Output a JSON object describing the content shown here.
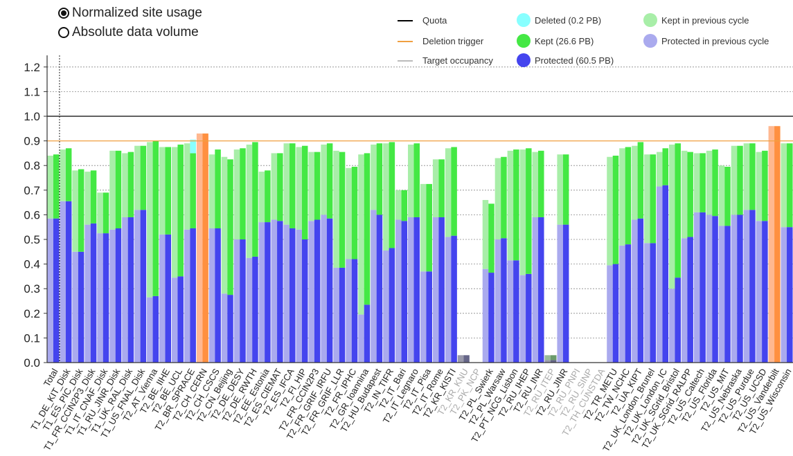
{
  "controls": {
    "options": [
      {
        "label": "Normalized site usage",
        "selected": true
      },
      {
        "label": "Absolute data volume",
        "selected": false
      }
    ]
  },
  "legend": {
    "lines": [
      {
        "label": "Quota",
        "color": "#000000"
      },
      {
        "label": "Deletion trigger",
        "color": "#f0a040"
      },
      {
        "label": "Target occupancy",
        "color": "#bbbbbb"
      }
    ],
    "swatches": [
      {
        "label": "Deleted (0.2 PB)",
        "color": "#88ffff"
      },
      {
        "label": "Kept (26.6 PB)",
        "color": "#44e844"
      },
      {
        "label": "Protected (60.5 PB)",
        "color": "#4444ee"
      },
      {
        "label": "Kept in previous cycle",
        "color": "#a8eea8"
      },
      {
        "label": "Protected in previous cycle",
        "color": "#aaaaee"
      }
    ]
  },
  "chart_data": {
    "type": "bar",
    "ylim": [
      0,
      1.25
    ],
    "yticks": [
      "0.0",
      "0.1",
      "0.2",
      "0.3",
      "0.4",
      "0.5",
      "0.6",
      "0.7",
      "0.8",
      "0.9",
      "1.0",
      "1.1",
      "1.2"
    ],
    "reference_lines": {
      "quota": 1.0,
      "deletion_trigger": 0.9
    },
    "colors": {
      "protected": "#4444ee",
      "kept": "#44e844",
      "deleted": "#88ffff",
      "protected_prev": "#aaaaee",
      "kept_prev": "#a8eea8",
      "over_trigger": "#ff9040",
      "over_trigger_prev": "#ffb890",
      "dim_cur": "#666688",
      "dim_prev": "#9999aa",
      "dim_kept": "#6a9a6a",
      "dim_kept_prev": "#99bb99"
    },
    "categories": [
      {
        "name": "Total",
        "prev": [
          0.585,
          0.84
        ],
        "cur": [
          0.585,
          0.845
        ]
      },
      {
        "name": "T1_DE_KIT_Disk",
        "prev": [
          0.655,
          0.865
        ],
        "cur": [
          0.655,
          0.87
        ]
      },
      {
        "name": "T1_ES_PIC_Disk",
        "prev": [
          0.45,
          0.78
        ],
        "cur": [
          0.45,
          0.785
        ]
      },
      {
        "name": "T1_FR_CCIN2P3_Disk",
        "prev": [
          0.56,
          0.775
        ],
        "cur": [
          0.565,
          0.78
        ]
      },
      {
        "name": "T1_IT_CNAF_Disk",
        "prev": [
          0.525,
          0.69
        ],
        "cur": [
          0.525,
          0.69
        ]
      },
      {
        "name": "T1_RU_JINR_Disk",
        "prev": [
          0.54,
          0.86
        ],
        "cur": [
          0.545,
          0.86
        ]
      },
      {
        "name": "T1_UK_RAL_Disk",
        "prev": [
          0.59,
          0.85
        ],
        "cur": [
          0.59,
          0.855
        ]
      },
      {
        "name": "T1_US_FNAL_Disk",
        "prev": [
          0.62,
          0.88
        ],
        "cur": [
          0.62,
          0.88
        ]
      },
      {
        "name": "T2_AT_Vienna",
        "prev": [
          0.265,
          0.895
        ],
        "cur": [
          0.27,
          0.9
        ]
      },
      {
        "name": "T2_BE_IIHE",
        "prev": [
          0.52,
          0.875
        ],
        "cur": [
          0.52,
          0.875
        ]
      },
      {
        "name": "T2_BE_UCL",
        "prev": [
          0.345,
          0.875
        ],
        "cur": [
          0.35,
          0.885
        ]
      },
      {
        "name": "T2_BR_SPRACE",
        "prev": [
          0.54,
          0.89
        ],
        "cur": [
          0.545,
          0.85
        ],
        "deleted": 0.055
      },
      {
        "name": "T2_CH_CERN",
        "prev": [
          0.93,
          0.93
        ],
        "cur": [
          0.93,
          0.93
        ],
        "over": true
      },
      {
        "name": "T2_CH_CSCS",
        "prev": [
          0.545,
          0.845
        ],
        "cur": [
          0.545,
          0.865
        ]
      },
      {
        "name": "T2_CN_Beijing",
        "prev": [
          0.28,
          0.835
        ],
        "cur": [
          0.275,
          0.825
        ]
      },
      {
        "name": "T2_DE_DESY",
        "prev": [
          0.5,
          0.865
        ],
        "cur": [
          0.5,
          0.87
        ]
      },
      {
        "name": "T2_DE_RWTH",
        "prev": [
          0.425,
          0.885
        ],
        "cur": [
          0.43,
          0.895
        ]
      },
      {
        "name": "T2_EE_Estonia",
        "prev": [
          0.57,
          0.775
        ],
        "cur": [
          0.57,
          0.78
        ]
      },
      {
        "name": "T2_ES_CIEMAT",
        "prev": [
          0.58,
          0.85
        ],
        "cur": [
          0.575,
          0.85
        ]
      },
      {
        "name": "T2_ES_IFCA",
        "prev": [
          0.56,
          0.89
        ],
        "cur": [
          0.545,
          0.89
        ]
      },
      {
        "name": "T2_FI_HIP",
        "prev": [
          0.54,
          0.875
        ],
        "cur": [
          0.5,
          0.88
        ]
      },
      {
        "name": "T2_FR_CCIN2P3",
        "prev": [
          0.575,
          0.855
        ],
        "cur": [
          0.58,
          0.855
        ]
      },
      {
        "name": "T2_FR_GRIF_IRFU",
        "prev": [
          0.6,
          0.885
        ],
        "cur": [
          0.585,
          0.89
        ]
      },
      {
        "name": "T2_FR_GRIF_LLR",
        "prev": [
          0.385,
          0.86
        ],
        "cur": [
          0.385,
          0.855
        ]
      },
      {
        "name": "T2_FR_IPHC",
        "prev": [
          0.42,
          0.79
        ],
        "cur": [
          0.42,
          0.795
        ]
      },
      {
        "name": "T2_GR_Ioannina",
        "prev": [
          0.195,
          0.845
        ],
        "cur": [
          0.235,
          0.85
        ]
      },
      {
        "name": "T2_HU_Budapest",
        "prev": [
          0.62,
          0.885
        ],
        "cur": [
          0.6,
          0.89
        ]
      },
      {
        "name": "T2_IN_TIFR",
        "prev": [
          0.455,
          0.89
        ],
        "cur": [
          0.465,
          0.895
        ]
      },
      {
        "name": "T2_IT_Bari",
        "prev": [
          0.58,
          0.7
        ],
        "cur": [
          0.575,
          0.7
        ]
      },
      {
        "name": "T2_IT_Legnaro",
        "prev": [
          0.59,
          0.885
        ],
        "cur": [
          0.59,
          0.89
        ]
      },
      {
        "name": "T2_IT_Pisa",
        "prev": [
          0.37,
          0.725
        ],
        "cur": [
          0.37,
          0.725
        ]
      },
      {
        "name": "T2_IT_Rome",
        "prev": [
          0.59,
          0.825
        ],
        "cur": [
          0.59,
          0.825
        ]
      },
      {
        "name": "T2_KR_KISTI",
        "prev": [
          0.51,
          0.87
        ],
        "cur": [
          0.515,
          0.875
        ]
      },
      {
        "name": "T2_KR_KNU",
        "prev": [
          0.03,
          0.03
        ],
        "cur": [
          0.03,
          0.03
        ],
        "dim": true
      },
      {
        "name": "T2_PK_NCP",
        "prev": [
          0,
          0
        ],
        "cur": [
          0,
          0
        ],
        "dim": true
      },
      {
        "name": "T2_PL_Swierk",
        "prev": [
          0.38,
          0.66
        ],
        "cur": [
          0.365,
          0.645
        ]
      },
      {
        "name": "T2_PL_Warsaw",
        "prev": [
          0.5,
          0.83
        ],
        "cur": [
          0.505,
          0.835
        ]
      },
      {
        "name": "T2_PT_NCG_Lisbon",
        "prev": [
          0.415,
          0.86
        ],
        "cur": [
          0.415,
          0.865
        ]
      },
      {
        "name": "T2_RU_IHEP",
        "prev": [
          0.355,
          0.865
        ],
        "cur": [
          0.36,
          0.87
        ]
      },
      {
        "name": "T2_RU_INR",
        "prev": [
          0.59,
          0.855
        ],
        "cur": [
          0.59,
          0.86
        ]
      },
      {
        "name": "T2_RU_ITEP",
        "prev": [
          0.01,
          0.03
        ],
        "cur": [
          0.01,
          0.03
        ],
        "dim": true
      },
      {
        "name": "T2_RU_JINR",
        "prev": [
          0.56,
          0.845
        ],
        "cur": [
          0.56,
          0.845
        ]
      },
      {
        "name": "T2_RU_PNPI",
        "prev": [
          0,
          0
        ],
        "cur": [
          0,
          0
        ],
        "dim": true
      },
      {
        "name": "T2_RU_SINP",
        "prev": [
          0,
          0
        ],
        "cur": [
          0,
          0
        ],
        "dim": true
      },
      {
        "name": "T2_TH_CUNSTDA",
        "prev": [
          0,
          0
        ],
        "cur": [
          0,
          0
        ],
        "dim": true
      },
      {
        "name": "T2_TR_METU",
        "prev": [
          0.395,
          0.835
        ],
        "cur": [
          0.4,
          0.84
        ]
      },
      {
        "name": "T2_TW_NCHC",
        "prev": [
          0.475,
          0.87
        ],
        "cur": [
          0.48,
          0.875
        ]
      },
      {
        "name": "T2_UA_KIPT",
        "prev": [
          0.58,
          0.88
        ],
        "cur": [
          0.585,
          0.895
        ]
      },
      {
        "name": "T2_UK_London_Brunel",
        "prev": [
          0.485,
          0.845
        ],
        "cur": [
          0.485,
          0.845
        ]
      },
      {
        "name": "T2_UK_London_IC",
        "prev": [
          0.715,
          0.855
        ],
        "cur": [
          0.72,
          0.87
        ]
      },
      {
        "name": "T2_UK_SGrid_Bristol",
        "prev": [
          0.3,
          0.885
        ],
        "cur": [
          0.345,
          0.89
        ]
      },
      {
        "name": "T2_UK_SGrid_RALPP",
        "prev": [
          0.505,
          0.86
        ],
        "cur": [
          0.51,
          0.855
        ]
      },
      {
        "name": "T2_US_Caltech",
        "prev": [
          0.61,
          0.85
        ],
        "cur": [
          0.61,
          0.85
        ]
      },
      {
        "name": "T2_US_Florida",
        "prev": [
          0.6,
          0.86
        ],
        "cur": [
          0.595,
          0.865
        ]
      },
      {
        "name": "T2_US_MIT",
        "prev": [
          0.555,
          0.8
        ],
        "cur": [
          0.555,
          0.795
        ]
      },
      {
        "name": "T2_US_Nebraska",
        "prev": [
          0.6,
          0.88
        ],
        "cur": [
          0.6,
          0.88
        ]
      },
      {
        "name": "T2_US_Purdue",
        "prev": [
          0.62,
          0.89
        ],
        "cur": [
          0.62,
          0.89
        ]
      },
      {
        "name": "T2_US_UCSD",
        "prev": [
          0.575,
          0.855
        ],
        "cur": [
          0.575,
          0.86
        ]
      },
      {
        "name": "T2_US_Vanderbilt",
        "prev": [
          0.96,
          0.96
        ],
        "cur": [
          0.96,
          0.96
        ],
        "over": true
      },
      {
        "name": "T2_US_Wisconsin",
        "prev": [
          0.55,
          0.89
        ],
        "cur": [
          0.55,
          0.89
        ]
      }
    ]
  }
}
